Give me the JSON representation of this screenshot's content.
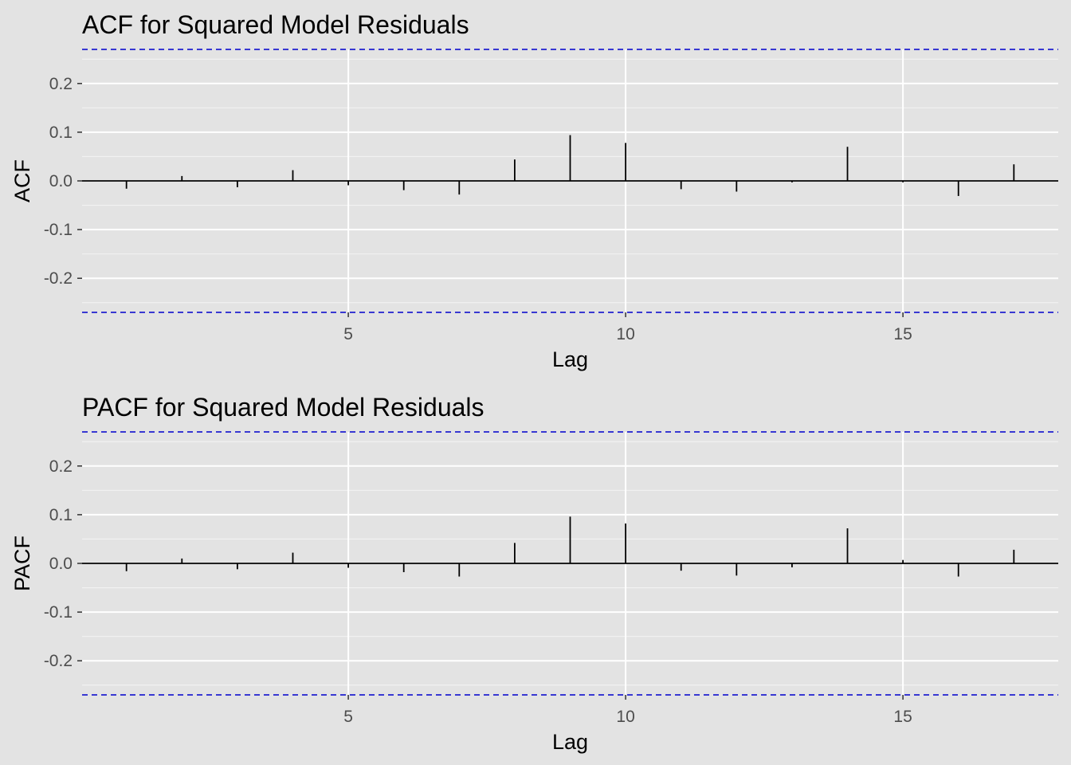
{
  "chart_data": [
    {
      "type": "bar",
      "title": "ACF for Squared Model Residuals",
      "xlabel": "Lag",
      "ylabel": "ACF",
      "xlim": [
        0.2,
        17.8
      ],
      "ylim": [
        -0.27,
        0.27
      ],
      "x_ticks": [
        5,
        10,
        15
      ],
      "x_tick_labels": [
        "5",
        "10",
        "15"
      ],
      "y_ticks": [
        -0.2,
        -0.1,
        0.0,
        0.1,
        0.2
      ],
      "y_tick_labels": [
        "-0.2",
        "-0.1",
        "0.0",
        "0.1",
        "0.2"
      ],
      "lags": [
        1,
        2,
        3,
        4,
        5,
        6,
        7,
        8,
        9,
        10,
        11,
        12,
        13,
        14,
        15,
        16,
        17
      ],
      "values": [
        -0.016,
        0.01,
        -0.013,
        0.022,
        -0.009,
        -0.019,
        -0.028,
        0.044,
        0.094,
        0.078,
        -0.017,
        -0.022,
        -0.003,
        0.07,
        -0.003,
        -0.031,
        0.034
      ],
      "confidence_bound": 0.27,
      "confidence_color": "#0000cc",
      "grid": true
    },
    {
      "type": "bar",
      "title": "PACF for Squared Model Residuals",
      "xlabel": "Lag",
      "ylabel": "PACF",
      "xlim": [
        0.2,
        17.8
      ],
      "ylim": [
        -0.27,
        0.27
      ],
      "x_ticks": [
        5,
        10,
        15
      ],
      "x_tick_labels": [
        "5",
        "10",
        "15"
      ],
      "y_ticks": [
        -0.2,
        -0.1,
        0.0,
        0.1,
        0.2
      ],
      "y_tick_labels": [
        "-0.2",
        "-0.1",
        "0.0",
        "0.1",
        "0.2"
      ],
      "lags": [
        1,
        2,
        3,
        4,
        5,
        6,
        7,
        8,
        9,
        10,
        11,
        12,
        13,
        14,
        15,
        16,
        17
      ],
      "values": [
        -0.016,
        0.01,
        -0.012,
        0.022,
        -0.009,
        -0.018,
        -0.027,
        0.042,
        0.096,
        0.082,
        -0.015,
        -0.025,
        -0.008,
        0.072,
        0.007,
        -0.027,
        0.028
      ],
      "confidence_bound": 0.27,
      "confidence_color": "#0000cc",
      "grid": true
    }
  ]
}
